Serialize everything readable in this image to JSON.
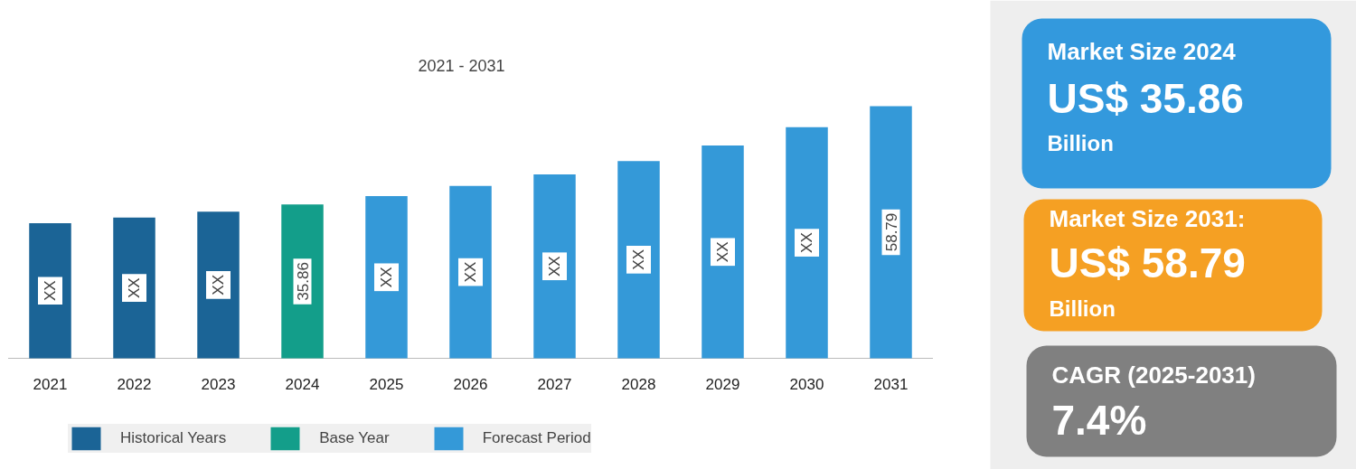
{
  "chart_data": {
    "type": "bar",
    "title": "2021 - 2031",
    "grid": false,
    "legend": "bottom",
    "categories": [
      "2021",
      "2022",
      "2023",
      "2024",
      "2025",
      "2026",
      "2027",
      "2028",
      "2029",
      "2030",
      "2031"
    ],
    "series": [
      {
        "name": "Historical Years",
        "color": "#1b6496",
        "values": [
          31.5,
          32.8,
          34.2,
          null,
          null,
          null,
          null,
          null,
          null,
          null,
          null
        ],
        "value_labels": [
          "XX",
          "XX",
          "XX",
          null,
          null,
          null,
          null,
          null,
          null,
          null,
          null
        ]
      },
      {
        "name": "Base Year",
        "color": "#139e8a",
        "values": [
          null,
          null,
          null,
          35.86,
          null,
          null,
          null,
          null,
          null,
          null,
          null
        ],
        "value_labels": [
          null,
          null,
          null,
          "35.86",
          null,
          null,
          null,
          null,
          null,
          null,
          null
        ]
      },
      {
        "name": "Forecast Period",
        "color": "#3499d8",
        "values": [
          null,
          null,
          null,
          null,
          37.8,
          40.2,
          42.9,
          46.0,
          49.6,
          53.9,
          58.79
        ],
        "value_labels": [
          null,
          null,
          null,
          null,
          "XX",
          "XX",
          "XX",
          "XX",
          "XX",
          "XX",
          "58.79"
        ]
      }
    ],
    "annotations": [
      "Market Size 2024",
      "US$ 35.86",
      "Billion",
      "Market Size 2031:",
      "US$ 58.79",
      "Billion",
      "CAGR (2025-2031)",
      "7.4%"
    ]
  }
}
